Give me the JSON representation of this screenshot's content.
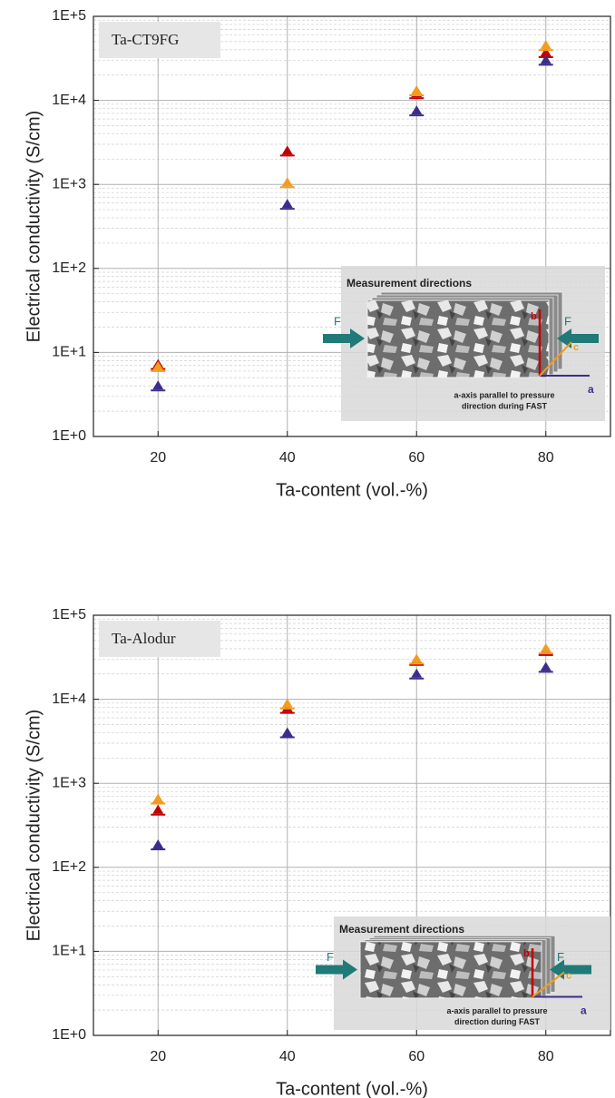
{
  "chart_data": [
    {
      "type": "scatter",
      "panel_label": "Ta-CT9FG",
      "x_label": "Ta-content (vol.-%)",
      "y_label": "Electrical conductivity (S/cm)",
      "xlim": [
        10,
        90
      ],
      "xticks": [
        20,
        40,
        60,
        80
      ],
      "ylim": [
        1,
        100000
      ],
      "log_y": true,
      "grid": true,
      "yticks": [
        {
          "value": 1,
          "label": "1E+0"
        },
        {
          "value": 10,
          "label": "1E+1"
        },
        {
          "value": 100,
          "label": "1E+2"
        },
        {
          "value": 1000,
          "label": "1E+3"
        },
        {
          "value": 10000,
          "label": "1E+4"
        },
        {
          "value": 100000,
          "label": "1E+5"
        }
      ],
      "series": [
        {
          "color": "#c00000",
          "x": [
            20,
            40,
            60,
            80
          ],
          "values": [
            7.2,
            2500,
            12000,
            37000
          ]
        },
        {
          "color": "#f39c1e",
          "x": [
            20,
            40,
            60,
            80
          ],
          "values": [
            6.8,
            1050,
            13000,
            45000
          ]
        },
        {
          "color": "#3c2d8c",
          "x": [
            20,
            40,
            60,
            80
          ],
          "values": [
            4.0,
            580,
            7500,
            30000
          ]
        }
      ],
      "inset": {
        "title": "Measurement directions",
        "force_label": "F",
        "axes": [
          "a",
          "b",
          "c"
        ],
        "note": [
          "a-axis parallel to pressure",
          "direction during FAST"
        ]
      }
    },
    {
      "type": "scatter",
      "panel_label": "Ta-Alodur",
      "x_label": "Ta-content (vol.-%)",
      "y_label": "Electrical conductivity (S/cm)",
      "xlim": [
        10,
        90
      ],
      "xticks": [
        20,
        40,
        60,
        80
      ],
      "ylim": [
        1,
        100000
      ],
      "log_y": true,
      "grid": true,
      "yticks": [
        {
          "value": 1,
          "label": "1E+0"
        },
        {
          "value": 10,
          "label": "1E+1"
        },
        {
          "value": 100,
          "label": "1E+2"
        },
        {
          "value": 1000,
          "label": "1E+3"
        },
        {
          "value": 10000,
          "label": "1E+4"
        },
        {
          "value": 100000,
          "label": "1E+5"
        }
      ],
      "series": [
        {
          "color": "#c00000",
          "x": [
            20,
            40,
            60,
            80
          ],
          "values": [
            480,
            7800,
            29000,
            38000
          ]
        },
        {
          "color": "#f39c1e",
          "x": [
            20,
            40,
            60,
            80
          ],
          "values": [
            650,
            8800,
            30000,
            40000
          ]
        },
        {
          "color": "#3c2d8c",
          "x": [
            20,
            40,
            60,
            80
          ],
          "values": [
            185,
            4000,
            20000,
            24000
          ]
        }
      ],
      "inset": {
        "title": "Measurement directions",
        "force_label": "F",
        "axes": [
          "a",
          "b",
          "c"
        ],
        "note": [
          "a-axis parallel to pressure",
          "direction during FAST"
        ]
      }
    }
  ]
}
